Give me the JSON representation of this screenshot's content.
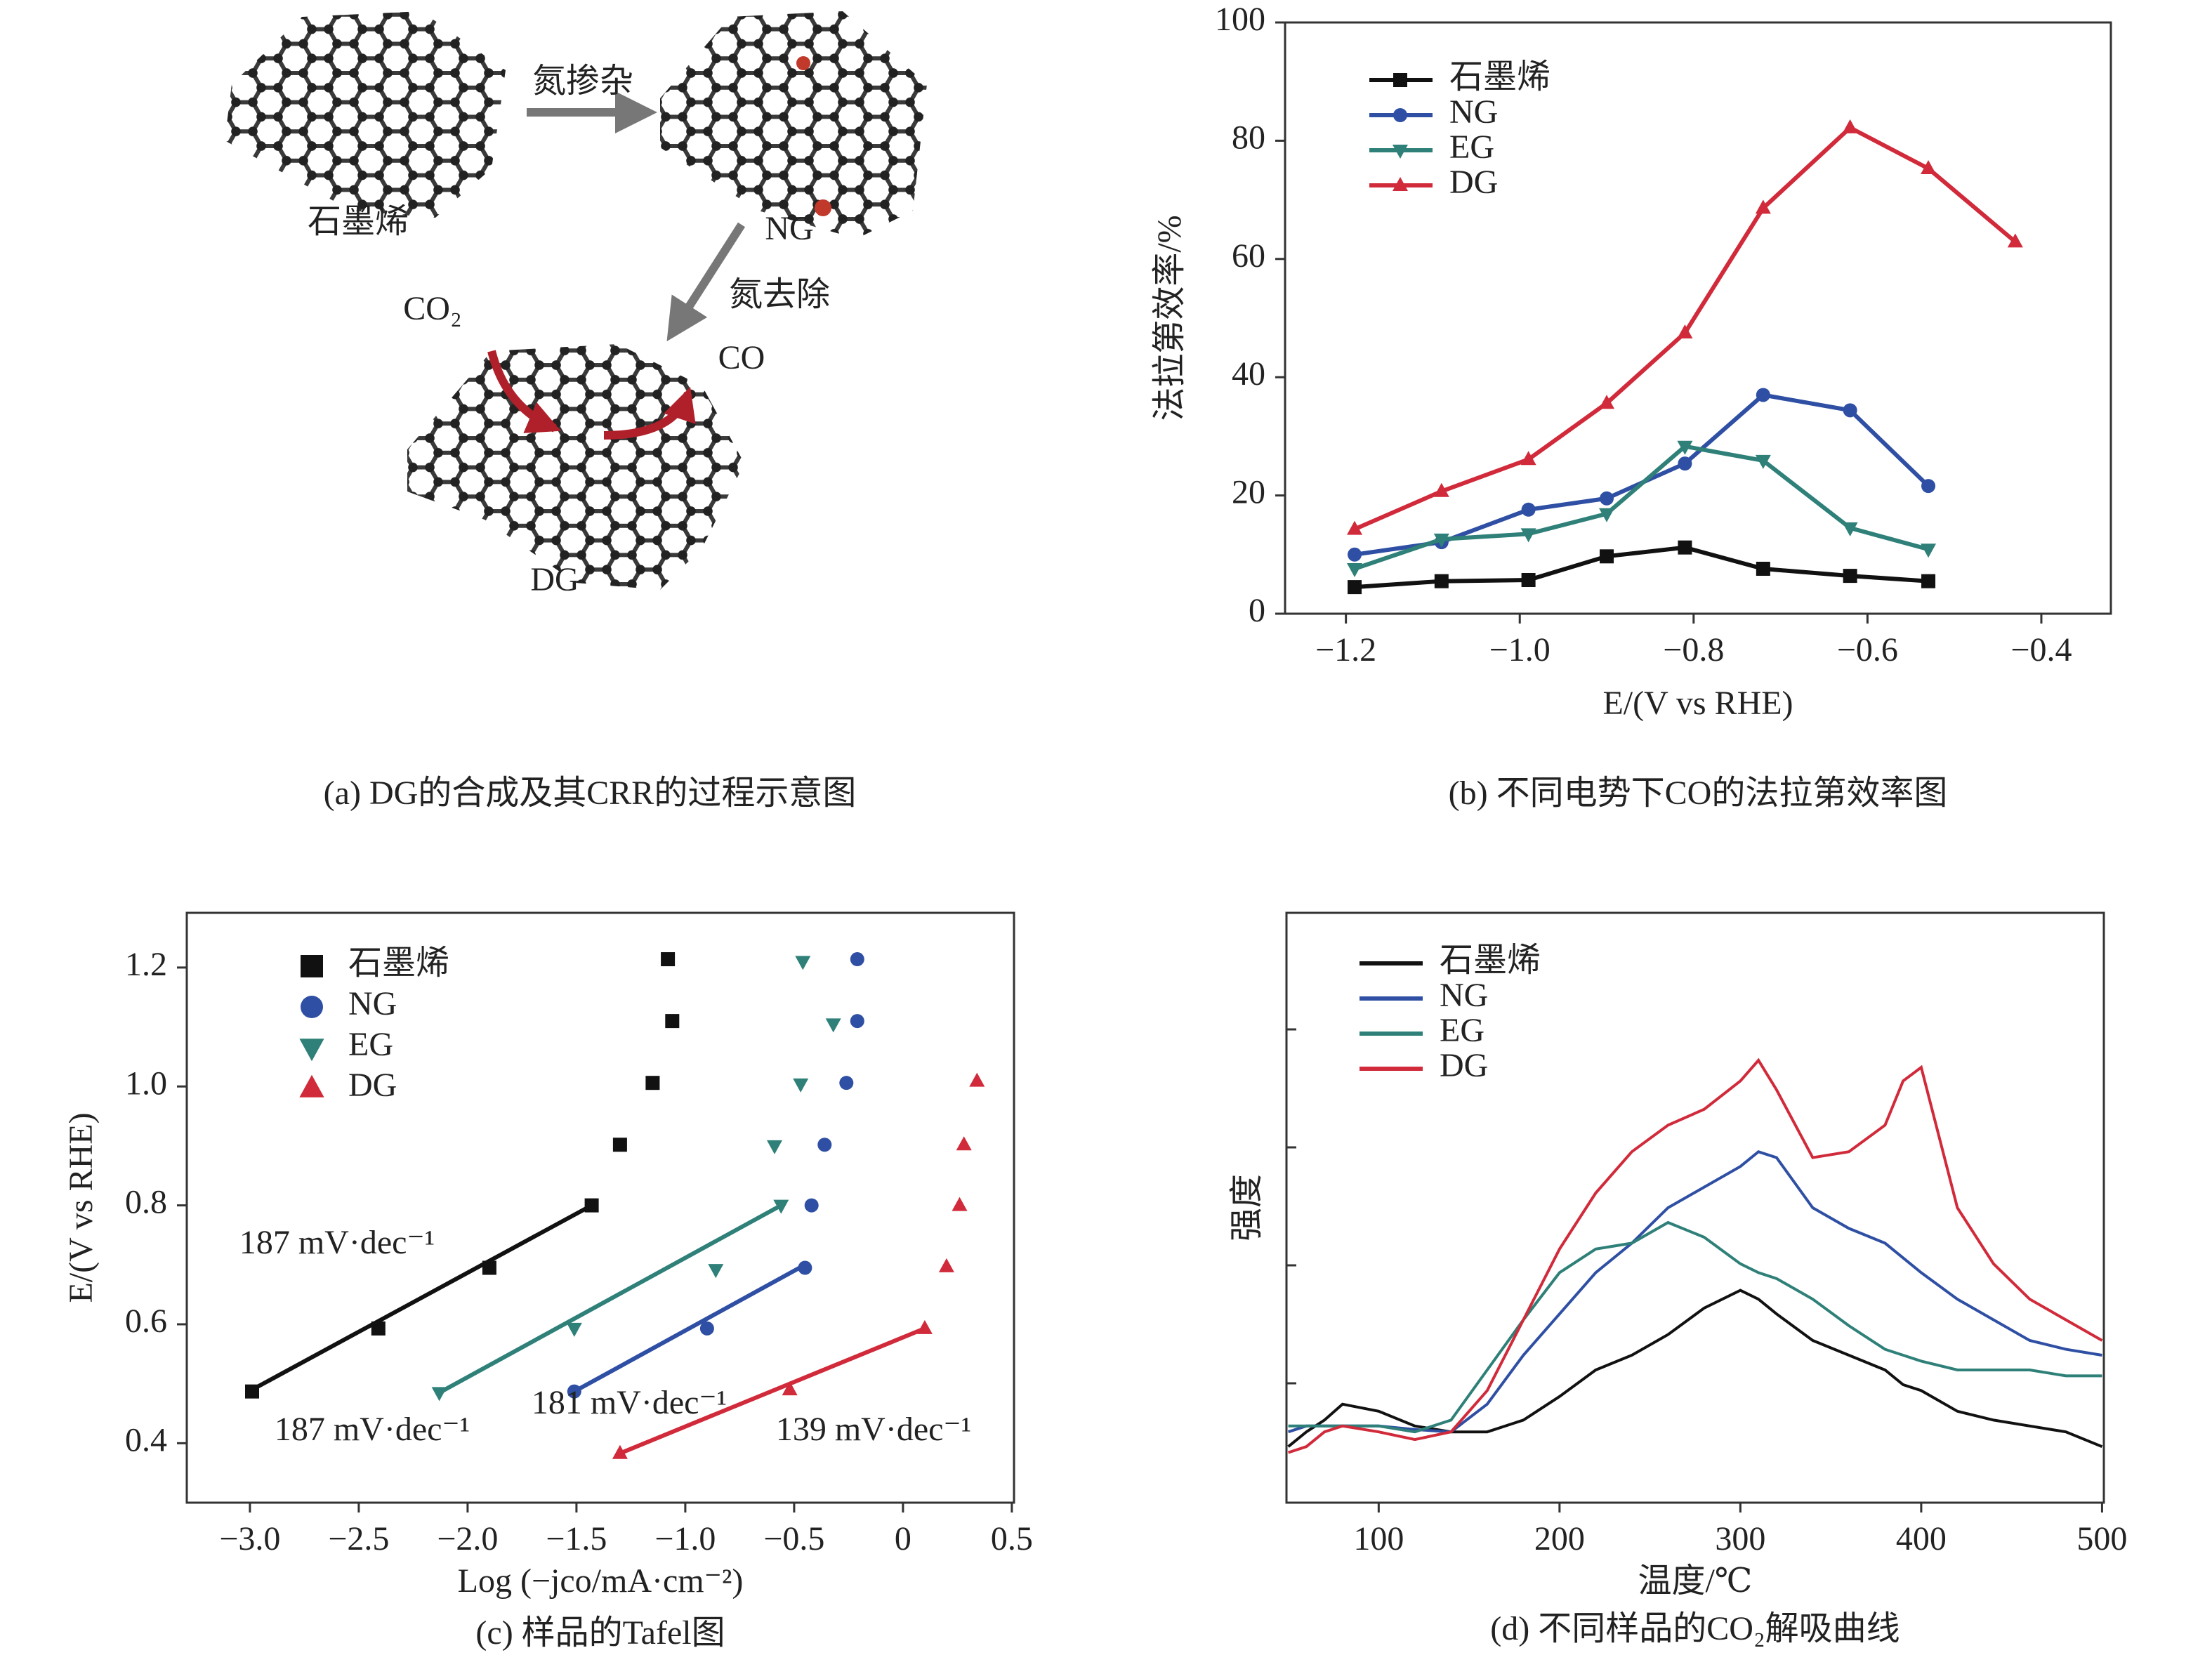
{
  "diagram": {
    "caption": "(a) DG的合成及其CRR的过程示意图",
    "labels": {
      "doping": "氮掺杂",
      "graphene": "石墨烯",
      "ng": "NG",
      "removal": "氮去除",
      "co2": "CO₂",
      "co": "CO",
      "dg": "DG"
    }
  },
  "chart_data": [
    {
      "type": "line",
      "caption": "(b) 不同电势下CO的法拉第效率图",
      "xlabel": "E/(V vs RHE)",
      "ylabel": "法拉第效率/%",
      "x": [
        -1.19,
        -1.09,
        -0.99,
        -0.9,
        -0.81,
        -0.72,
        -0.62,
        -0.53,
        -0.43
      ],
      "series": [
        {
          "name": "石墨烯",
          "color": "#111111",
          "marker": "square",
          "values": [
            4.5,
            5.5,
            5.7,
            9.7,
            11.2,
            7.6,
            6.4,
            5.5,
            null
          ]
        },
        {
          "name": "NG",
          "color": "#2e4fa3",
          "marker": "circle",
          "values": [
            10,
            12.1,
            17.6,
            19.5,
            25.4,
            37,
            34.4,
            21.6,
            null
          ]
        },
        {
          "name": "EG",
          "color": "#2e8078",
          "marker": "triangle-down",
          "values": [
            7.6,
            12.6,
            13.5,
            16.9,
            28.3,
            25.9,
            14.5,
            10.9,
            null
          ]
        },
        {
          "name": "DG",
          "color": "#d12a3a",
          "marker": "triangle",
          "values": [
            14.3,
            20.7,
            26.1,
            35.6,
            47.5,
            68.6,
            82.2,
            75.3,
            62.9
          ]
        }
      ],
      "xlim": [
        -1.27,
        -0.32
      ],
      "ylim": [
        0,
        100
      ],
      "xticks": [
        {
          "value": -1.2,
          "label": "−1.2"
        },
        {
          "value": -1.0,
          "label": "−1.0"
        },
        {
          "value": -0.8,
          "label": "−0.8"
        },
        {
          "value": -0.6,
          "label": "−0.6"
        },
        {
          "value": -0.4,
          "label": "−0.4"
        }
      ],
      "yticks": [
        0,
        20,
        40,
        60,
        80,
        100
      ],
      "legend": "upper left"
    },
    {
      "type": "scatter",
      "caption": "(c) 样品的Tafel图",
      "xlabel": "Log (−jco/mA·cm⁻²)",
      "ylabel": "E/(V vs RHE)",
      "series": [
        {
          "name": "石墨烯",
          "color": "#111111",
          "marker": "square",
          "x": [
            -1.08,
            -1.06,
            -1.15,
            -1.3,
            -1.43,
            -1.9,
            -2.41,
            -2.99
          ],
          "values": [
            1.214,
            1.11,
            1.006,
            0.902,
            0.8,
            0.695,
            0.593,
            0.487
          ],
          "fit": {
            "x": [
              -2.99,
              -1.43
            ],
            "y": [
              0.49,
              0.8
            ]
          }
        },
        {
          "name": "NG",
          "color": "#2e4fa3",
          "marker": "circle",
          "x": [
            -0.21,
            -0.21,
            -0.26,
            -0.36,
            -0.42,
            -0.45,
            -0.9,
            -1.51
          ],
          "values": [
            1.214,
            1.11,
            1.006,
            0.902,
            0.8,
            0.695,
            0.593,
            0.487
          ],
          "fit": {
            "x": [
              -1.51,
              -0.45
            ],
            "y": [
              0.487,
              0.7
            ]
          }
        },
        {
          "name": "EG",
          "color": "#2e8078",
          "marker": "triangle-down",
          "x": [
            -0.46,
            -0.32,
            -0.47,
            -0.59,
            -0.56,
            -0.86,
            -1.51,
            -2.13
          ],
          "values": [
            1.21,
            1.105,
            1.004,
            0.9,
            0.8,
            0.692,
            0.593,
            0.485
          ],
          "fit": {
            "x": [
              -2.13,
              -0.56
            ],
            "y": [
              0.485,
              0.8
            ]
          }
        },
        {
          "name": "DG",
          "color": "#d12a3a",
          "marker": "triangle",
          "x": [
            0.34,
            0.28,
            0.26,
            0.2,
            0.1,
            -0.52,
            -1.3
          ],
          "values": [
            1.009,
            0.902,
            0.8,
            0.697,
            0.593,
            0.49,
            0.383
          ],
          "fit": {
            "x": [
              -1.3,
              0.1
            ],
            "y": [
              0.383,
              0.593
            ]
          }
        }
      ],
      "annotations": [
        "187 mV·dec⁻¹",
        "187 mV·dec⁻¹",
        "181 mV·dec⁻¹",
        "139 mV·dec⁻¹"
      ],
      "xlim": [
        -3.29,
        0.51
      ],
      "ylim": [
        0.3,
        1.292
      ],
      "xticks": [
        {
          "value": -3.0,
          "label": "−3.0"
        },
        {
          "value": -2.5,
          "label": "−2.5"
        },
        {
          "value": -2.0,
          "label": "−2.0"
        },
        {
          "value": -1.5,
          "label": "−1.5"
        },
        {
          "value": -1.0,
          "label": "−1.0"
        },
        {
          "value": -0.5,
          "label": "−0.5"
        },
        0,
        0.5
      ],
      "yticks": [
        0.4,
        0.6,
        0.8,
        {
          "value": 1.0,
          "label": "1.0"
        },
        1.2
      ],
      "legend": "upper left"
    },
    {
      "type": "line",
      "caption": "(d) 不同样品的CO₂解吸曲线",
      "xlabel": "温度/℃",
      "ylabel": "强度",
      "x": [
        50,
        60,
        70,
        80,
        100,
        120,
        140,
        160,
        180,
        200,
        220,
        240,
        260,
        280,
        300,
        310,
        320,
        340,
        360,
        380,
        390,
        400,
        420,
        440,
        460,
        480,
        500
      ],
      "series": [
        {
          "name": "石墨烯",
          "color": "#111111",
          "values": [
            0.095,
            0.12,
            0.14,
            0.167,
            0.155,
            0.13,
            0.12,
            0.12,
            0.14,
            0.18,
            0.225,
            0.25,
            0.285,
            0.33,
            0.36,
            0.345,
            0.32,
            0.275,
            0.25,
            0.225,
            0.2,
            0.19,
            0.155,
            0.14,
            0.13,
            0.12,
            0.095
          ]
        },
        {
          "name": "NG",
          "color": "#2e4fa3",
          "values": [
            0.12,
            0.13,
            0.13,
            0.13,
            0.13,
            0.124,
            0.12,
            0.167,
            0.25,
            0.32,
            0.39,
            0.44,
            0.5,
            0.535,
            0.57,
            0.595,
            0.585,
            0.5,
            0.465,
            0.44,
            0.415,
            0.39,
            0.345,
            0.31,
            0.275,
            0.26,
            0.25
          ]
        },
        {
          "name": "EG",
          "color": "#2e8078",
          "values": [
            0.13,
            0.13,
            0.13,
            0.13,
            0.13,
            0.12,
            0.14,
            0.225,
            0.31,
            0.39,
            0.43,
            0.44,
            0.475,
            0.45,
            0.405,
            0.39,
            0.38,
            0.345,
            0.3,
            0.26,
            0.25,
            0.24,
            0.225,
            0.225,
            0.225,
            0.215,
            0.215
          ]
        },
        {
          "name": "DG",
          "color": "#d12a3a",
          "values": [
            0.085,
            0.095,
            0.12,
            0.13,
            0.12,
            0.107,
            0.12,
            0.19,
            0.31,
            0.43,
            0.525,
            0.595,
            0.64,
            0.667,
            0.715,
            0.75,
            0.7,
            0.585,
            0.595,
            0.64,
            0.715,
            0.738,
            0.5,
            0.405,
            0.345,
            0.31,
            0.275
          ]
        }
      ],
      "xlim": [
        49,
        501
      ],
      "ylim": [
        0,
        1
      ],
      "xticks": [
        100,
        200,
        300,
        400,
        500
      ],
      "legend": "upper left"
    }
  ]
}
